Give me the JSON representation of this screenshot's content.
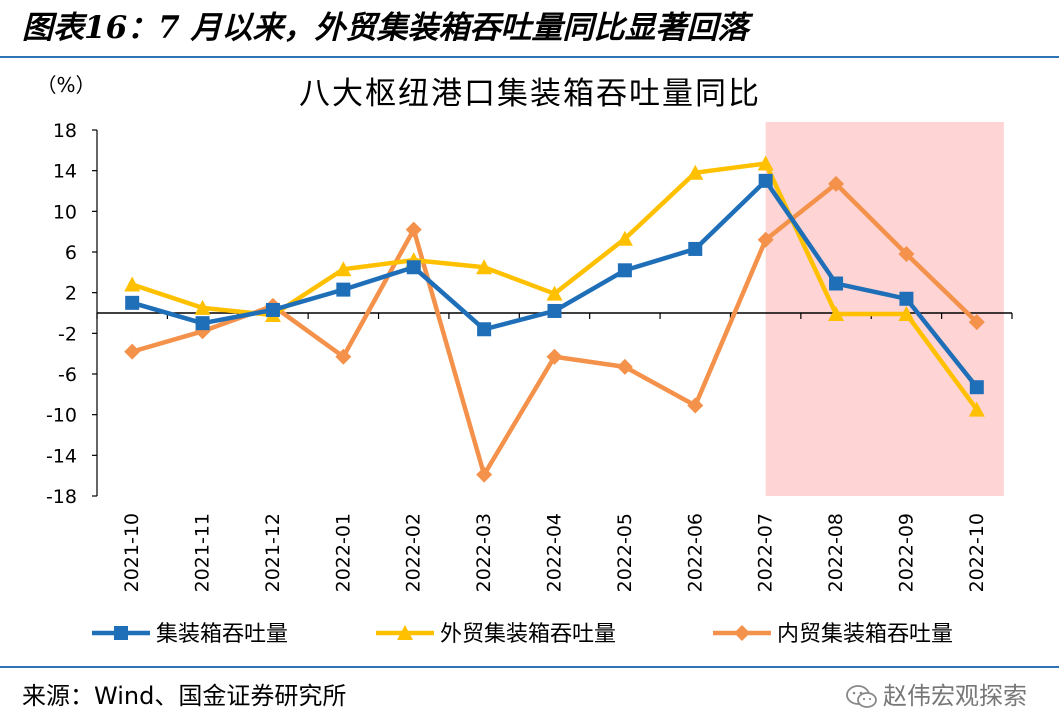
{
  "figure_title": "图表16：7 月以来，外贸集装箱吞吐量同比显著回落",
  "source": "来源：Wind、国金证券研究所",
  "watermark": "赵伟宏观探索",
  "colors": {
    "series_total": "#1f6fb8",
    "series_foreign": "#ffc000",
    "series_domestic": "#f4914a",
    "highlight": "#ffd4d4",
    "rule": "#2e74b5"
  },
  "chart_data": {
    "type": "line",
    "title": "八大枢纽港口集装箱吞吐量同比",
    "ylabel": "（%）",
    "xlabel": "",
    "ylim": [
      -18,
      18
    ],
    "yticks": [
      18,
      14,
      10,
      6,
      2,
      -2,
      -6,
      -10,
      -14,
      -18
    ],
    "categories": [
      "2021-10",
      "2021-11",
      "2021-12",
      "2022-01",
      "2022-02",
      "2022-03",
      "2022-04",
      "2022-05",
      "2022-06",
      "2022-07",
      "2022-08",
      "2022-09",
      "2022-10"
    ],
    "highlight_range": [
      "2022-07",
      "2022-10"
    ],
    "legend_position": "bottom",
    "grid": false,
    "series": [
      {
        "name": "集装箱吞吐量",
        "marker": "square",
        "color": "#1f6fb8",
        "values": [
          1.0,
          -1.0,
          0.3,
          2.3,
          4.5,
          -1.6,
          0.2,
          4.2,
          6.3,
          13.0,
          2.9,
          1.4,
          -7.3
        ]
      },
      {
        "name": "外贸集装箱吞吐量",
        "marker": "triangle",
        "color": "#ffc000",
        "values": [
          2.8,
          0.5,
          -0.2,
          4.3,
          5.2,
          4.5,
          1.9,
          7.3,
          13.8,
          14.7,
          -0.1,
          -0.1,
          -9.5
        ]
      },
      {
        "name": "内贸集装箱吞吐量",
        "marker": "diamond",
        "color": "#f4914a",
        "values": [
          -3.8,
          -1.8,
          0.7,
          -4.3,
          8.2,
          -15.9,
          -4.3,
          -5.3,
          -9.1,
          7.2,
          12.7,
          5.8,
          -0.9
        ]
      }
    ]
  }
}
